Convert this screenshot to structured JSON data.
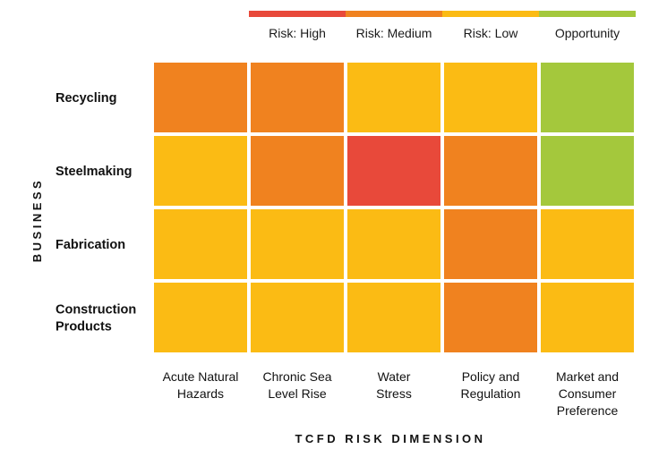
{
  "chart_data": {
    "type": "heatmap",
    "legend": [
      {
        "key": "high",
        "label": "Risk: High",
        "color": "#e8493a"
      },
      {
        "key": "medium",
        "label": "Risk: Medium",
        "color": "#f0821f"
      },
      {
        "key": "low",
        "label": "Risk: Low",
        "color": "#fbbb14"
      },
      {
        "key": "opportunity",
        "label": "Opportunity",
        "color": "#a4c83c"
      }
    ],
    "rows": [
      {
        "label": [
          "Recycling"
        ]
      },
      {
        "label": [
          "Steelmaking"
        ]
      },
      {
        "label": [
          "Fabrication"
        ]
      },
      {
        "label": [
          "Construction",
          "Products"
        ]
      }
    ],
    "columns": [
      {
        "label": [
          "Acute Natural",
          "Hazards"
        ]
      },
      {
        "label": [
          "Chronic Sea",
          "Level Rise"
        ]
      },
      {
        "label": [
          "Water",
          "Stress"
        ]
      },
      {
        "label": [
          "Policy and",
          "Regulation"
        ]
      },
      {
        "label": [
          "Market and",
          "Consumer",
          "Preference"
        ]
      }
    ],
    "cells": [
      [
        "medium",
        "medium",
        "low",
        "low",
        "opportunity"
      ],
      [
        "low",
        "medium",
        "high",
        "medium",
        "opportunity"
      ],
      [
        "low",
        "low",
        "low",
        "medium",
        "low"
      ],
      [
        "low",
        "low",
        "low",
        "medium",
        "low"
      ]
    ],
    "ylabel": "BUSINESS",
    "xlabel": "TCFD RISK DIMENSION"
  }
}
